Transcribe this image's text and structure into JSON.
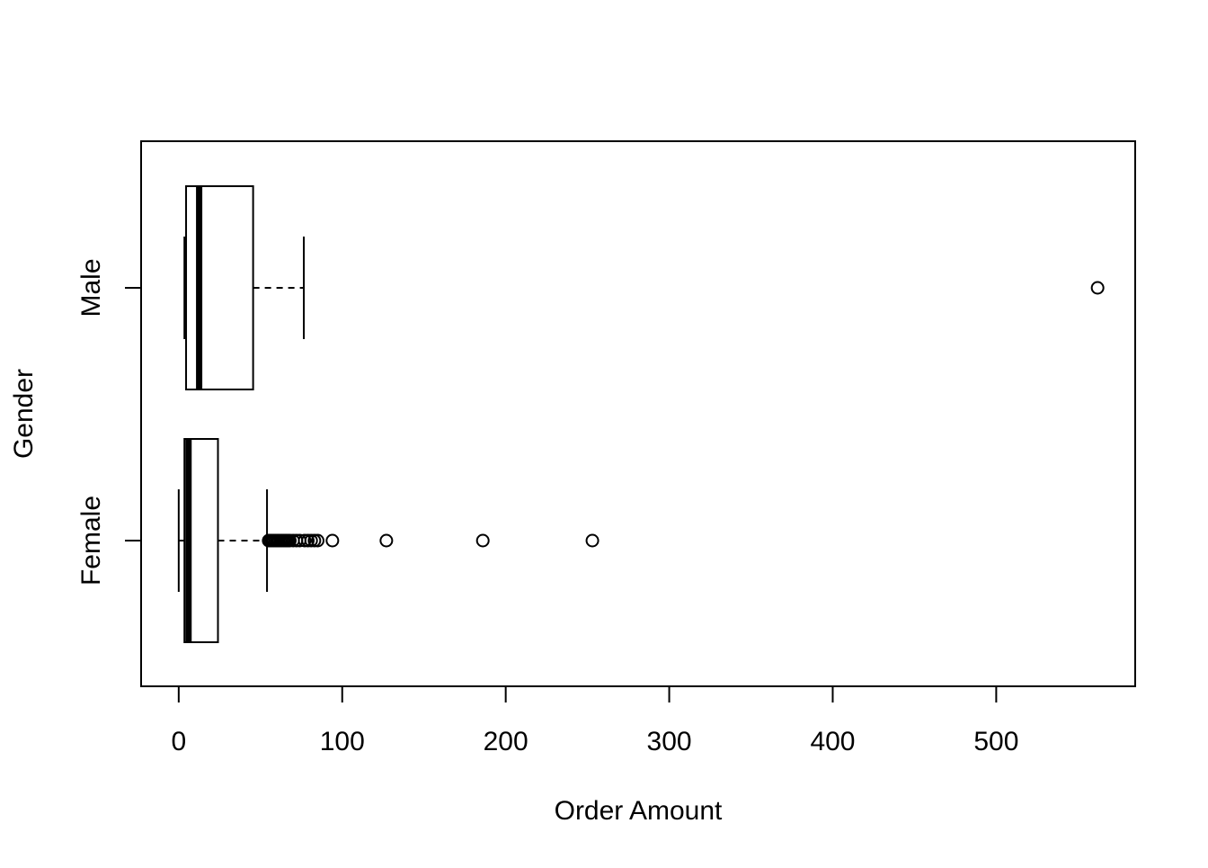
{
  "chart_data": {
    "type": "boxplot",
    "orientation": "horizontal",
    "title": "",
    "xlabel": "Order Amount",
    "ylabel": "Gender",
    "xlim": [
      -23,
      585
    ],
    "xticks": [
      0,
      100,
      200,
      300,
      400,
      500
    ],
    "xtick_labels": [
      "0",
      "100",
      "200",
      "300",
      "400",
      "500"
    ],
    "grid": false,
    "legend": "none",
    "groups": [
      {
        "name": "Female",
        "whisker_low": 0,
        "q1": 3.5,
        "median": 6,
        "q3": 24,
        "whisker_high": 54,
        "outliers": [
          55,
          56,
          57,
          58,
          59,
          60,
          61,
          62,
          63,
          64,
          65,
          66,
          67,
          68,
          70,
          72,
          74,
          77,
          79,
          81,
          83,
          85,
          94,
          127,
          186,
          253
        ]
      },
      {
        "name": "Male",
        "whisker_low": 3.5,
        "q1": 4.5,
        "median": 12.5,
        "q3": 45.5,
        "whisker_high": 76.5,
        "outliers": [
          562
        ]
      }
    ],
    "colors": {
      "stroke": "#000000",
      "background": "#ffffff"
    }
  }
}
